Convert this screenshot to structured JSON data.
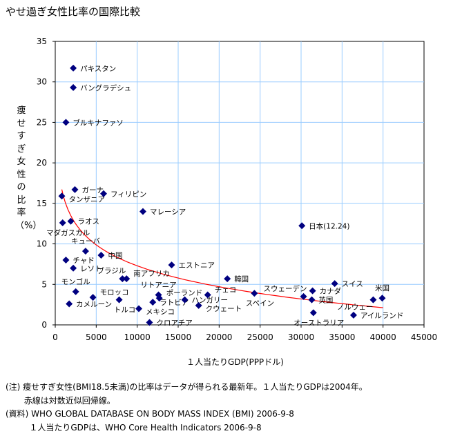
{
  "chart_data": {
    "type": "scatter",
    "title": "やせ過ぎ女性比率の国際比較",
    "xlabel": "１人当たりGDP(PPPドル)",
    "ylabel": "痩せすぎ女性の比率（%）",
    "xlim": [
      0,
      45000
    ],
    "ylim": [
      0,
      35
    ],
    "xticks": [
      0,
      5000,
      10000,
      15000,
      20000,
      25000,
      30000,
      35000,
      40000,
      45000
    ],
    "yticks": [
      0,
      5,
      10,
      15,
      20,
      25,
      30,
      35
    ],
    "grid": true,
    "marker_color": "#000080",
    "trend": {
      "type": "log",
      "a": 41.65,
      "b": 3.73,
      "x_range": [
        800,
        40000
      ],
      "color": "#ff0000",
      "label": "赤線は対数近似回帰線"
    },
    "points": [
      {
        "name": "パキスタン",
        "x": 2200,
        "y": 31.7,
        "pos": "right"
      },
      {
        "name": "バングラデシュ",
        "x": 2200,
        "y": 29.3,
        "pos": "right"
      },
      {
        "name": "ブルキナファソ",
        "x": 1300,
        "y": 25.0,
        "pos": "right"
      },
      {
        "name": "ガーナ",
        "x": 2400,
        "y": 16.7,
        "pos": "right"
      },
      {
        "name": "タンザニア",
        "x": 800,
        "y": 15.9,
        "pos": "right"
      },
      {
        "name": "フィリピン",
        "x": 5900,
        "y": 16.2,
        "pos": "right"
      },
      {
        "name": "マレーシア",
        "x": 10700,
        "y": 14.0,
        "pos": "right"
      },
      {
        "name": "ラオス",
        "x": 1900,
        "y": 12.8,
        "pos": "right"
      },
      {
        "name": "マダガスカル",
        "x": 900,
        "y": 12.6,
        "pos": "below"
      },
      {
        "name": "キューバ",
        "x": 3700,
        "y": 9.1,
        "pos": "above"
      },
      {
        "name": "中国",
        "x": 5600,
        "y": 8.6,
        "pos": "right"
      },
      {
        "name": "チャド",
        "x": 1300,
        "y": 8.0,
        "pos": "right"
      },
      {
        "name": "レソト",
        "x": 2200,
        "y": 7.0,
        "pos": "right"
      },
      {
        "name": "エストニア",
        "x": 14200,
        "y": 7.4,
        "pos": "right"
      },
      {
        "name": "ブラジル",
        "x": 8200,
        "y": 5.7,
        "pos": "above-left"
      },
      {
        "name": "南アフリカ",
        "x": 8700,
        "y": 5.7,
        "pos": "right"
      },
      {
        "name": "モンゴル",
        "x": 2500,
        "y": 4.1,
        "pos": "right"
      },
      {
        "name": "モロッコ",
        "x": 4600,
        "y": 3.4,
        "pos": "right"
      },
      {
        "name": "カメルーン",
        "x": 1700,
        "y": 2.6,
        "pos": "right"
      },
      {
        "name": "トルコ",
        "x": 7800,
        "y": 3.1,
        "pos": "right"
      },
      {
        "name": "リトアニア",
        "x": 12600,
        "y": 3.7,
        "pos": "above"
      },
      {
        "name": "ポーランド",
        "x": 12700,
        "y": 3.3,
        "pos": "right"
      },
      {
        "name": "ラトビア",
        "x": 11900,
        "y": 2.8,
        "pos": "right"
      },
      {
        "name": "メキシコ",
        "x": 10200,
        "y": 2.0,
        "pos": "right"
      },
      {
        "name": "クロアチア",
        "x": 11500,
        "y": 0.3,
        "pos": "right"
      },
      {
        "name": "ハンガリー",
        "x": 15800,
        "y": 3.1,
        "pos": "right"
      },
      {
        "name": "クウェート",
        "x": 17500,
        "y": 2.4,
        "pos": "right"
      },
      {
        "name": "チェコ",
        "x": 18600,
        "y": 3.7,
        "pos": "right"
      },
      {
        "name": "韓国",
        "x": 21000,
        "y": 5.7,
        "pos": "right"
      },
      {
        "name": "スペイン",
        "x": 24300,
        "y": 3.9,
        "pos": "below"
      },
      {
        "name": "日本(12.24)",
        "x": 30100,
        "y": 12.24,
        "pos": "right"
      },
      {
        "name": "スウェーデン",
        "x": 30300,
        "y": 3.5,
        "pos": "above-left"
      },
      {
        "name": "カナダ",
        "x": 31400,
        "y": 4.2,
        "pos": "right"
      },
      {
        "name": "英国",
        "x": 31300,
        "y": 3.1,
        "pos": "right"
      },
      {
        "name": "オーストラリア",
        "x": 31500,
        "y": 1.5,
        "pos": "below"
      },
      {
        "name": "スイス",
        "x": 34100,
        "y": 5.1,
        "pos": "right"
      },
      {
        "name": "ノルウェー",
        "x": 38800,
        "y": 3.1,
        "pos": "left"
      },
      {
        "name": "米国",
        "x": 39900,
        "y": 3.3,
        "pos": "above"
      },
      {
        "name": "アイルランド",
        "x": 36400,
        "y": 1.2,
        "pos": "right"
      }
    ]
  },
  "notes": [
    "(注) 痩せすぎ女性(BMI18.5未満)の比率はデータが得られる最新年。１人当たりGDPは2004年。",
    "       赤線は対数近似回帰線。",
    "(資料) WHO GLOBAL DATABASE ON BODY MASS INDEX (BMI) 2006-9-8",
    "         １人当たりGDPは、WHO Core Health Indicators 2006-9-8"
  ]
}
